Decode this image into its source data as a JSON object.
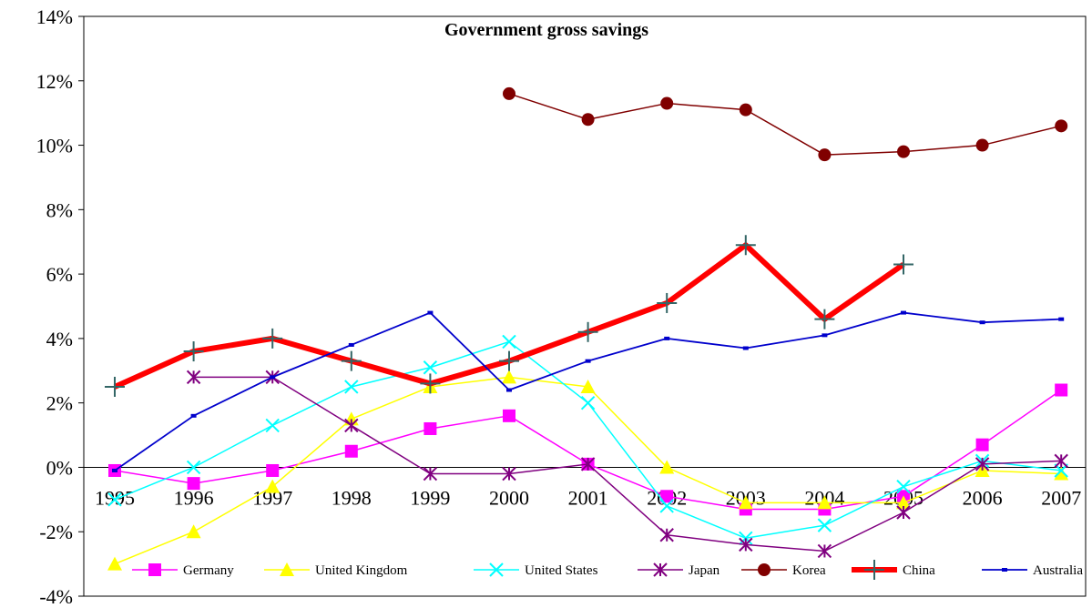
{
  "chart_data": {
    "type": "line",
    "title": "Government gross savings",
    "xlabel": "",
    "ylabel": "",
    "ylim": [
      -4,
      14
    ],
    "y_ticks": [
      -4,
      -2,
      0,
      2,
      4,
      6,
      8,
      10,
      12,
      14
    ],
    "y_tick_labels": [
      "-4%",
      "-2%",
      "0%",
      "2%",
      "4%",
      "6%",
      "8%",
      "10%",
      "12%",
      "14%"
    ],
    "categories": [
      "1995",
      "1996",
      "1997",
      "1998",
      "1999",
      "2000",
      "2001",
      "2002",
      "2003",
      "2004",
      "2005",
      "2006",
      "2007"
    ],
    "grid": false,
    "legend_position": "bottom",
    "series": [
      {
        "name": "Germany",
        "color": "#ff00ff",
        "marker": "square",
        "width": 1.5,
        "values": [
          -0.1,
          -0.5,
          -0.1,
          0.5,
          1.2,
          1.6,
          0.1,
          -0.9,
          -1.3,
          -1.3,
          -0.9,
          0.7,
          2.4
        ]
      },
      {
        "name": "United Kingdom",
        "color": "#ffff00",
        "marker": "triangle",
        "width": 1.5,
        "values": [
          -3.0,
          -2.0,
          -0.6,
          1.5,
          2.5,
          2.8,
          2.5,
          0.0,
          -1.1,
          -1.1,
          -1.1,
          -0.1,
          -0.2
        ]
      },
      {
        "name": "United States",
        "color": "#00ffff",
        "marker": "x",
        "width": 1.5,
        "values": [
          -1.0,
          0.0,
          1.3,
          2.5,
          3.1,
          3.9,
          2.0,
          -1.2,
          -2.2,
          -1.8,
          -0.6,
          0.2,
          -0.1
        ]
      },
      {
        "name": "Japan",
        "color": "#800080",
        "marker": "star",
        "width": 1.5,
        "values": [
          null,
          2.8,
          2.8,
          1.3,
          -0.2,
          -0.2,
          0.1,
          -2.1,
          -2.4,
          -2.6,
          -1.4,
          0.1,
          0.2
        ]
      },
      {
        "name": "Korea",
        "color": "#800000",
        "marker": "circle",
        "width": 1.5,
        "values": [
          null,
          null,
          null,
          null,
          null,
          11.6,
          10.8,
          11.3,
          11.1,
          9.7,
          9.8,
          10.0,
          10.6
        ]
      },
      {
        "name": "China",
        "color": "#ff0000",
        "marker": "plus",
        "width": 6,
        "values": [
          2.5,
          3.6,
          4.0,
          3.3,
          2.6,
          3.3,
          4.2,
          5.1,
          6.9,
          4.6,
          6.3,
          null,
          null
        ]
      },
      {
        "name": "Australia",
        "color": "#0000cc",
        "marker": "dash",
        "width": 1.8,
        "values": [
          -0.1,
          1.6,
          2.8,
          3.8,
          4.8,
          2.4,
          3.3,
          4.0,
          3.7,
          4.1,
          4.8,
          4.5,
          4.6
        ]
      }
    ]
  }
}
